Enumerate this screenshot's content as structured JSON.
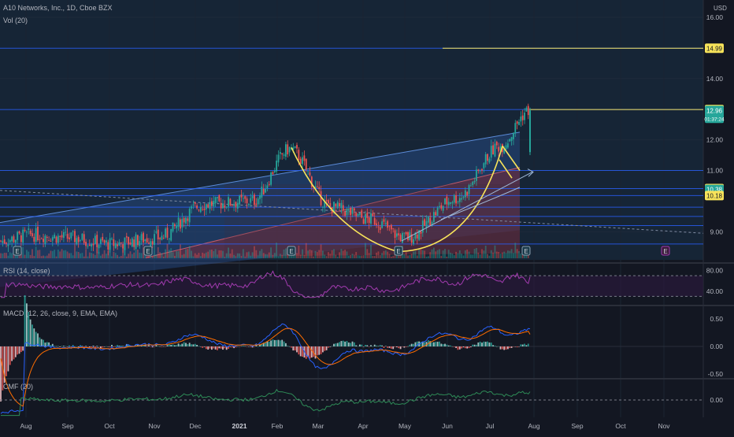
{
  "header": {
    "symbol_line": "A10 Networks, Inc., 1D, Cboe BZX",
    "volume_label": "Vol (20)"
  },
  "colors": {
    "background": "#131722",
    "price_area": "#162536",
    "grid": "#1f2a3a",
    "text": "#b2b5be",
    "up": "#26a69a",
    "down": "#ef5350",
    "level_line": "#2962ff",
    "cup_handle": "#f7e35a",
    "channel_fill": "#2c5aa0",
    "wedge_fill": "#7a2a3a",
    "rsi_line": "#a33bb0",
    "macd_line": "#2962ff",
    "signal_line": "#ff6d00",
    "cmf_line": "#2e8b57"
  },
  "price_axis": {
    "unit": "USD",
    "ticks": [
      "16.00",
      "14.00",
      "12.00",
      "11.00",
      "9.00"
    ],
    "tags": [
      {
        "label": "14.99",
        "value": 14.99,
        "color": "#f7e35a",
        "text_color": "#131722"
      },
      {
        "label": "12.99",
        "value": 12.99,
        "color": "#f7e35a",
        "text_color": "#131722"
      },
      {
        "label": "12.96",
        "value": 12.96,
        "color": "#26a69a",
        "text_color": "#ffffff",
        "sub": "01:37:24"
      },
      {
        "label": "10.41",
        "value": 10.41,
        "color": "#f7e35a",
        "text_color": "#131722"
      },
      {
        "label": "10.38",
        "value": 10.38,
        "color": "#26a69a",
        "text_color": "#ffffff"
      },
      {
        "label": "10.18",
        "value": 10.18,
        "color": "#f7e35a",
        "text_color": "#131722"
      }
    ]
  },
  "time_axis": [
    "Aug",
    "Sep",
    "Oct",
    "Nov",
    "Dec",
    "2021",
    "Feb",
    "Mar",
    "Apr",
    "May",
    "Jun",
    "Jul",
    "Aug",
    "Sep",
    "Oct",
    "Nov"
  ],
  "indicators": {
    "rsi": {
      "label": "RSI (14, close)",
      "ticks": [
        "80.00",
        "40.00"
      ]
    },
    "macd": {
      "label": "MACD (12, 26, close, 9, EMA, EMA)",
      "ticks": [
        "0.50",
        "0.00",
        "-0.50"
      ]
    },
    "cmf": {
      "label": "CMF (20)",
      "ticks": [
        "0.00"
      ]
    }
  },
  "earnings_markers": [
    "E",
    "E",
    "E",
    "E",
    "E",
    "E"
  ],
  "chart_data": {
    "type": "candlestick",
    "instrument": "A10 Networks, Inc.",
    "interval": "1D",
    "exchange": "Cboe BZX",
    "y_unit": "USD",
    "ylim": [
      8.2,
      17.0
    ],
    "x_range": [
      "2020-07",
      "2021-11"
    ],
    "horizontal_levels": [
      14.99,
      12.99,
      11.0,
      10.41,
      10.18,
      9.8,
      9.5,
      9.2,
      8.6
    ],
    "close_series": {
      "x": [
        "2020-07",
        "2020-08",
        "2020-09",
        "2020-10",
        "2020-11",
        "2020-12",
        "2021-01",
        "2021-02",
        "2021-03",
        "2021-04",
        "2021-05",
        "2021-06",
        "2021-07",
        "2021-07-28"
      ],
      "values": [
        8.7,
        8.9,
        8.8,
        8.6,
        8.8,
        9.9,
        10.0,
        11.7,
        9.8,
        9.4,
        8.8,
        10.1,
        11.8,
        12.96
      ]
    },
    "last_price": 12.96,
    "rsi": {
      "ylim": [
        20,
        90
      ],
      "bands": [
        70,
        30
      ],
      "last": 68
    },
    "macd": {
      "ylim": [
        -0.6,
        0.6
      ],
      "last_macd": 0.32,
      "last_signal": 0.22
    },
    "cmf": {
      "ylim": [
        -0.3,
        0.3
      ],
      "last": 0.15
    }
  }
}
